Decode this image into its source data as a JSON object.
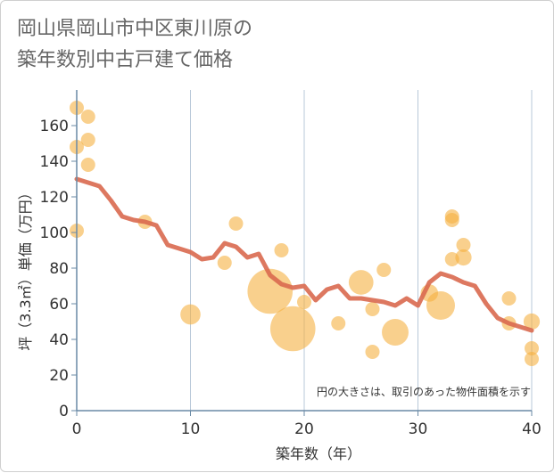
{
  "title": "岡山県岡山市中区東川原の\n築年数別中古戸建て価格",
  "chart_data": {
    "type": "scatter",
    "title": "岡山県岡山市中区東川原の 築年数別中古戸建て価格",
    "xlabel": "築年数（年）",
    "ylabel": "坪（3.3㎡）単価（万円）",
    "xlim": [
      0,
      40
    ],
    "ylim": [
      0,
      180
    ],
    "xticks": [
      0,
      10,
      20,
      30,
      40
    ],
    "yticks": [
      0,
      20,
      40,
      60,
      80,
      100,
      120,
      140,
      160
    ],
    "grid": "vertical",
    "note": "円の大きさは、取引のあった物件面積を示す",
    "colors": {
      "bubble": "#f5b041",
      "trend": "#d9694f",
      "grid": "#b8c8d8",
      "axis": "#6a8aa6"
    },
    "bubbles": [
      {
        "x": 0,
        "y": 170,
        "size": 1
      },
      {
        "x": 0,
        "y": 148,
        "size": 1
      },
      {
        "x": 0,
        "y": 101,
        "size": 1
      },
      {
        "x": 1,
        "y": 165,
        "size": 1
      },
      {
        "x": 1,
        "y": 152,
        "size": 1
      },
      {
        "x": 1,
        "y": 138,
        "size": 1
      },
      {
        "x": 6,
        "y": 106,
        "size": 1
      },
      {
        "x": 10,
        "y": 54,
        "size": 2
      },
      {
        "x": 13,
        "y": 83,
        "size": 1
      },
      {
        "x": 14,
        "y": 105,
        "size": 1
      },
      {
        "x": 17,
        "y": 67,
        "size": 10
      },
      {
        "x": 18,
        "y": 90,
        "size": 1
      },
      {
        "x": 19,
        "y": 46,
        "size": 10
      },
      {
        "x": 20,
        "y": 61,
        "size": 1
      },
      {
        "x": 23,
        "y": 49,
        "size": 1
      },
      {
        "x": 25,
        "y": 72,
        "size": 3
      },
      {
        "x": 26,
        "y": 57,
        "size": 1
      },
      {
        "x": 26,
        "y": 33,
        "size": 1
      },
      {
        "x": 27,
        "y": 79,
        "size": 1
      },
      {
        "x": 28,
        "y": 44,
        "size": 3.5
      },
      {
        "x": 31,
        "y": 66,
        "size": 1.5
      },
      {
        "x": 32,
        "y": 59,
        "size": 4
      },
      {
        "x": 33,
        "y": 109,
        "size": 1
      },
      {
        "x": 33,
        "y": 107,
        "size": 1
      },
      {
        "x": 33,
        "y": 85,
        "size": 1
      },
      {
        "x": 34,
        "y": 93,
        "size": 1
      },
      {
        "x": 34,
        "y": 86,
        "size": 1.3
      },
      {
        "x": 38,
        "y": 63,
        "size": 1
      },
      {
        "x": 38,
        "y": 49,
        "size": 1
      },
      {
        "x": 40,
        "y": 50,
        "size": 1.3
      },
      {
        "x": 40,
        "y": 35,
        "size": 1
      },
      {
        "x": 40,
        "y": 29,
        "size": 1
      }
    ],
    "trend": {
      "x": [
        0,
        1,
        2,
        3,
        4,
        5,
        6,
        7,
        8,
        9,
        10,
        11,
        12,
        13,
        14,
        15,
        16,
        17,
        18,
        19,
        20,
        21,
        22,
        23,
        24,
        25,
        26,
        27,
        28,
        29,
        30,
        31,
        32,
        33,
        34,
        35,
        36,
        37,
        38,
        39,
        40
      ],
      "y": [
        130,
        128,
        126,
        118,
        109,
        107,
        106,
        104,
        93,
        91,
        89,
        85,
        86,
        94,
        92,
        86,
        88,
        76,
        71,
        69,
        70,
        62,
        68,
        70,
        63,
        63,
        62,
        61,
        59,
        63,
        59,
        72,
        77,
        75,
        72,
        70,
        60,
        52,
        49,
        47,
        45
      ]
    }
  }
}
